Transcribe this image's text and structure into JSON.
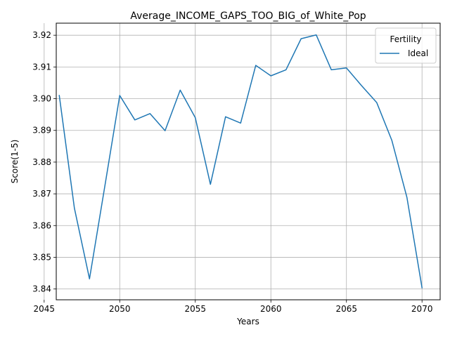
{
  "chart_data": {
    "type": "line",
    "title": "Average_INCOME_GAPS_TOO_BIG_of_White_Pop",
    "xlabel": "Years",
    "ylabel": "Score(1-5)",
    "xlim": [
      2045.8,
      2071.2
    ],
    "ylim": [
      3.8366,
      3.9238
    ],
    "x_ticks": [
      2045,
      2050,
      2055,
      2060,
      2065,
      2070
    ],
    "y_ticks": [
      3.84,
      3.85,
      3.86,
      3.87,
      3.88,
      3.89,
      3.9,
      3.91,
      3.92
    ],
    "y_tick_labels": [
      "3.84",
      "3.85",
      "3.86",
      "3.87",
      "3.88",
      "3.89",
      "3.90",
      "3.91",
      "3.92"
    ],
    "grid": true,
    "legend": {
      "title": "Fertility",
      "placement": "top-right"
    },
    "series": [
      {
        "name": "Ideal",
        "color": "#1f77b4",
        "x": [
          2046,
          2047,
          2048,
          2049,
          2050,
          2051,
          2052,
          2053,
          2054,
          2055,
          2056,
          2057,
          2058,
          2059,
          2060,
          2061,
          2062,
          2063,
          2064,
          2065,
          2066,
          2067,
          2068,
          2069,
          2070
        ],
        "y": [
          3.901,
          3.8655,
          3.8432,
          3.872,
          3.901,
          3.8933,
          3.8953,
          3.8899,
          3.9027,
          3.894,
          3.873,
          3.8943,
          3.8923,
          3.9105,
          3.9072,
          3.9091,
          3.9189,
          3.9201,
          3.9091,
          3.9097,
          3.9041,
          3.8988,
          3.8869,
          3.8689,
          3.8404
        ]
      }
    ]
  }
}
